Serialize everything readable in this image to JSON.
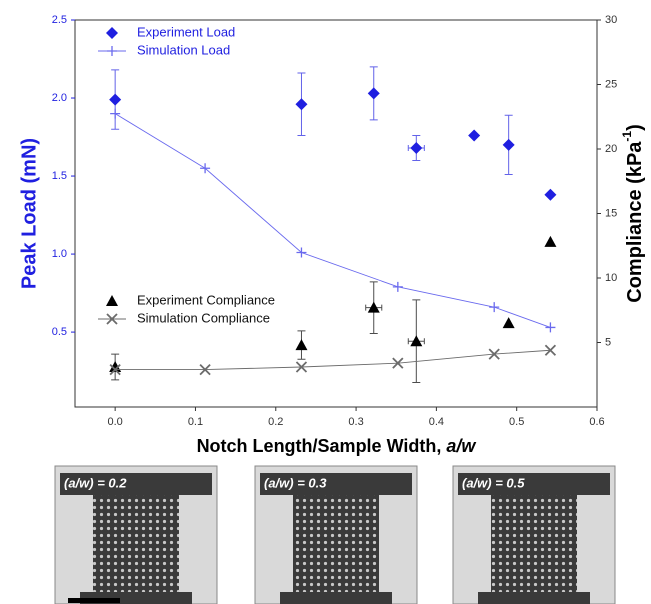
{
  "chart_data": {
    "type": "scatter",
    "ylabel": "Peak Load (mN)",
    "y2label": {
      "text": "Compliance (kPa",
      "sup": "-1",
      "end": ")"
    },
    "xlabel": {
      "text": "Notch Length/Sample Width, ",
      "italic": "a/w"
    },
    "xlim": [
      -0.05,
      0.6
    ],
    "xticks": [
      {
        "value": 0,
        "label": "0.0"
      },
      0.1,
      0.2,
      0.3,
      0.4,
      0.5,
      0.6
    ],
    "ylim": [
      0.02,
      2.5
    ],
    "yticks": [
      0.5,
      {
        "value": 1,
        "label": "1.0"
      },
      1.5,
      {
        "value": 2,
        "label": "2.0"
      },
      2.5
    ],
    "y2lim": [
      0,
      30
    ],
    "y2ticks": [
      5,
      10,
      15,
      20,
      25,
      30
    ],
    "series": [
      {
        "name": "Experiment Load",
        "color": "#1f1fe0",
        "marker": "diamond",
        "line": false,
        "x": [
          0.0,
          0.232,
          0.322,
          0.375,
          0.447,
          0.49,
          0.542
        ],
        "values": [
          1.99,
          1.96,
          2.03,
          1.68,
          1.76,
          1.7,
          1.38
        ],
        "yerr": [
          0.19,
          0.2,
          0.17,
          0.08,
          null,
          0.19,
          null
        ],
        "xerr": [
          null,
          null,
          null,
          0.01,
          null,
          null,
          null
        ]
      },
      {
        "name": "Simulation Load",
        "color": "#6a6aee",
        "marker": "plus",
        "line": true,
        "x": [
          0.0,
          0.112,
          0.232,
          0.352,
          0.472,
          0.542
        ],
        "values": [
          1.9,
          1.55,
          1.01,
          0.79,
          0.66,
          0.53
        ]
      },
      {
        "name": "Experiment Compliance",
        "color": "#000000",
        "marker": "triangle",
        "line": false,
        "axis": "y2",
        "x": [
          0.0,
          0.232,
          0.322,
          0.375,
          0.49,
          0.542
        ],
        "values": [
          3.1,
          4.8,
          7.7,
          5.1,
          6.5,
          12.8
        ],
        "yerr": [
          1.0,
          1.1,
          2.0,
          3.2,
          null,
          null
        ],
        "xerr": [
          null,
          null,
          0.01,
          0.01,
          null,
          null
        ]
      },
      {
        "name": "Simulation Compliance",
        "color": "#6b6b6b",
        "marker": "x",
        "line": true,
        "axis": "y2",
        "x": [
          0.0,
          0.112,
          0.232,
          0.352,
          0.472,
          0.542
        ],
        "values": [
          2.9,
          2.9,
          3.1,
          3.4,
          4.1,
          4.4
        ]
      }
    ]
  },
  "images": [
    {
      "label": "(a/w) = 0.2"
    },
    {
      "label": "(a/w) = 0.3"
    },
    {
      "label": "(a/w) = 0.5"
    }
  ]
}
